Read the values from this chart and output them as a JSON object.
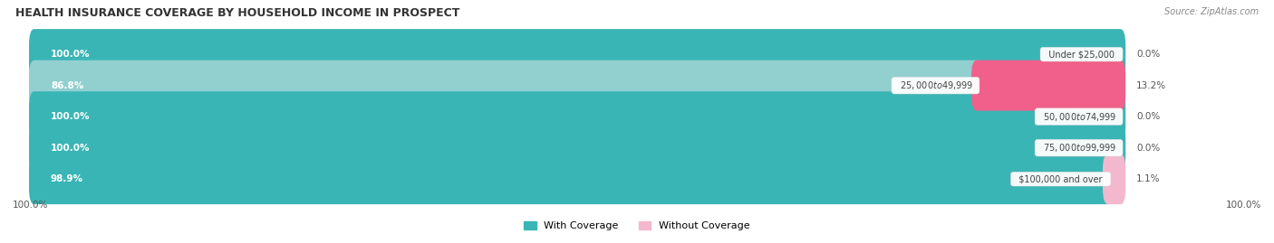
{
  "title": "HEALTH INSURANCE COVERAGE BY HOUSEHOLD INCOME IN PROSPECT",
  "source": "Source: ZipAtlas.com",
  "categories": [
    "Under $25,000",
    "$25,000 to $49,999",
    "$50,000 to $74,999",
    "$75,000 to $99,999",
    "$100,000 and over"
  ],
  "with_coverage": [
    100.0,
    86.8,
    100.0,
    100.0,
    98.9
  ],
  "without_coverage": [
    0.0,
    13.2,
    0.0,
    0.0,
    1.1
  ],
  "color_with": [
    "#3ab5b5",
    "#92cfcf",
    "#3ab5b5",
    "#3ab5b5",
    "#3ab5b5"
  ],
  "color_without": [
    "#f4b8ce",
    "#f0608a",
    "#f4b8ce",
    "#f4b8ce",
    "#f4b8ce"
  ],
  "bar_bg_color": "#e8e8e8",
  "label_axis_left": "100.0%",
  "label_axis_right": "100.0%",
  "legend_with": "With Coverage",
  "legend_without": "Without Coverage",
  "title_fontsize": 9,
  "source_fontsize": 7,
  "bar_label_fontsize": 7.5,
  "category_fontsize": 7,
  "xlim_max": 113,
  "bar_height": 0.62,
  "total_bar_width": 100
}
